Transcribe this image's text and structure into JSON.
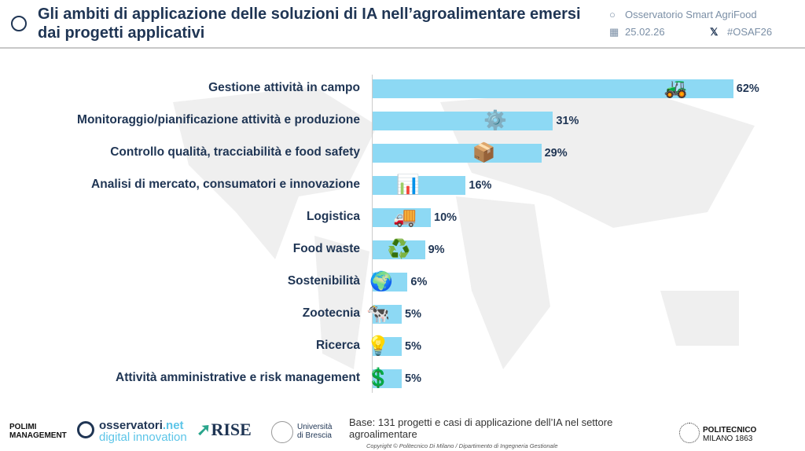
{
  "header": {
    "title": "Gli ambiti di applicazione delle soluzioni di IA nell’agroalimentare emersi dai progetti applicativi",
    "org": "Osservatorio Smart AgriFood",
    "date": "25.02.26",
    "hashtag": "#OSAF26"
  },
  "chart_data": {
    "type": "bar",
    "orientation": "horizontal",
    "categories": [
      "Gestione attività in campo",
      "Monitoraggio/pianificazione attività e produzione",
      "Controllo qualità, tracciabilità e food safety",
      "Analisi di mercato, consumatori e innovazione",
      "Logistica",
      "Food waste",
      "Sostenibilità",
      "Zootecnia",
      "Ricerca",
      "Attività amministrative e risk management"
    ],
    "values": [
      62,
      31,
      29,
      16,
      10,
      9,
      6,
      5,
      5,
      5
    ],
    "labels": [
      "62%",
      "31%",
      "29%",
      "16%",
      "10%",
      "9%",
      "6%",
      "5%",
      "5%",
      "5%"
    ],
    "unit": "%",
    "color": "#8dd9f4",
    "icons": [
      "tractor-icon",
      "workflow-icon",
      "supply-chain-icon",
      "bar-chart-icon",
      "delivery-truck-icon",
      "recycle-icon",
      "globe-plant-icon",
      "cow-icon",
      "lightbulb-gear-icon",
      "finance-chart-icon"
    ]
  },
  "footer": {
    "base": "Base: 131 progetti e casi di applicazione dell’IA nel settore agroalimentare",
    "copyright": "Copyright © Politecnico Di Milano / Dipartimento di Ingegneria Gestionale",
    "logos": [
      "POLIMI GRADUATE SCHOOL OF MANAGEMENT",
      "osservatori.net digital innovation",
      "RISE",
      "Università di Brescia",
      "POLITECNICO MILANO 1863"
    ]
  }
}
